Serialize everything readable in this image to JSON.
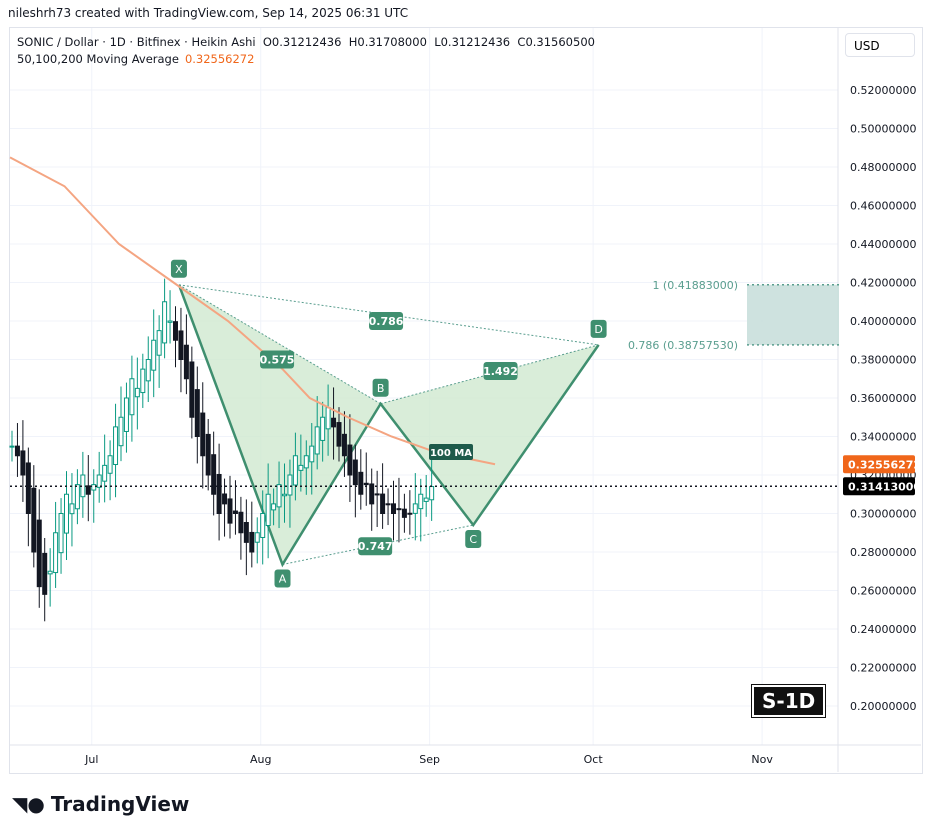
{
  "credit": "nileshrh73 created with TradingView.com, Sep 14, 2025 06:31 UTC",
  "legend": {
    "symbol_line": "SONIC / Dollar · 1D · Bitfinex · Heikin Ashi  O0.31212436  H0.31708000  L0.31212436  C0.31560500",
    "ma_label": "50,100,200 Moving Average",
    "ma_value": "0.32556272"
  },
  "currency": "USD",
  "badge": "S-1D",
  "brand": "TradingView",
  "colors": {
    "up": "#089981",
    "down": "#131722",
    "ma": "#f4a582",
    "pattern": "#3f8f6f",
    "pattern_fill": "#cfe8cf",
    "ma_tag": "#f0661a",
    "zone": "#c9dfdc"
  },
  "chart_data": {
    "type": "candlestick",
    "title": "SONIC / Dollar · 1D · Bitfinex · Heikin Ashi",
    "ylim": [
      0.19,
      0.535
    ],
    "y_ticks": [
      "0.52000000",
      "0.50000000",
      "0.48000000",
      "0.46000000",
      "0.44000000",
      "0.42000000",
      "0.40000000",
      "0.38000000",
      "0.36000000",
      "0.34000000",
      "0.32000000",
      "0.30000000",
      "0.28000000",
      "0.26000000",
      "0.24000000",
      "0.22000000",
      "0.20000000"
    ],
    "x_ticks": [
      {
        "label": "Jul",
        "day": 15
      },
      {
        "label": "Aug",
        "day": 46
      },
      {
        "label": "Sep",
        "day": 77
      },
      {
        "label": "Oct",
        "day": 107
      },
      {
        "label": "Nov",
        "day": 138
      }
    ],
    "closes": [
      0.335,
      0.33,
      0.32,
      0.3,
      0.28,
      0.262,
      0.258,
      0.27,
      0.29,
      0.3,
      0.31,
      0.305,
      0.315,
      0.32,
      0.31,
      0.315,
      0.32,
      0.325,
      0.33,
      0.345,
      0.35,
      0.36,
      0.37,
      0.365,
      0.375,
      0.38,
      0.39,
      0.395,
      0.41,
      0.4,
      0.39,
      0.38,
      0.37,
      0.35,
      0.34,
      0.33,
      0.32,
      0.31,
      0.3,
      0.305,
      0.295,
      0.3,
      0.29,
      0.285,
      0.28,
      0.29,
      0.3,
      0.31,
      0.305,
      0.315,
      0.31,
      0.32,
      0.33,
      0.325,
      0.33,
      0.335,
      0.345,
      0.35,
      0.355,
      0.345,
      0.335,
      0.33,
      0.32,
      0.315,
      0.31,
      0.315,
      0.305,
      0.31,
      0.3,
      0.305,
      0.3,
      0.302,
      0.298,
      0.3,
      0.305,
      0.31,
      0.308,
      0.314
    ],
    "ma100": [
      [
        0,
        0.485
      ],
      [
        10,
        0.47
      ],
      [
        20,
        0.44
      ],
      [
        30,
        0.42
      ],
      [
        40,
        0.4
      ],
      [
        50,
        0.375
      ],
      [
        55,
        0.36
      ],
      [
        62,
        0.35
      ],
      [
        70,
        0.34
      ],
      [
        78,
        0.332
      ],
      [
        89,
        0.3256
      ]
    ],
    "harmonic": {
      "points": [
        {
          "label": "X",
          "day": 31,
          "price": 0.4188
        },
        {
          "label": "A",
          "day": 50,
          "price": 0.2735
        },
        {
          "label": "B",
          "day": 68,
          "price": 0.357
        },
        {
          "label": "C",
          "day": 85,
          "price": 0.294
        },
        {
          "label": "D",
          "day": 108,
          "price": 0.3876
        }
      ],
      "ratios": [
        {
          "label": "0.575",
          "day": 49,
          "price": 0.38
        },
        {
          "label": "0.786",
          "day": 69,
          "price": 0.4
        },
        {
          "label": "1.492",
          "day": 90,
          "price": 0.374
        },
        {
          "label": "0.747",
          "day": 67,
          "price": 0.283
        }
      ],
      "ma_label": "100 MA"
    },
    "prz": [
      {
        "label": "1 (0.41883000)",
        "price": 0.41883
      },
      {
        "label": "0.786 (0.38757530)",
        "price": 0.3875753
      }
    ],
    "price_tags": [
      {
        "label": "0.32556272",
        "price": 0.32556272,
        "kind": "ma"
      },
      {
        "label": "0.31413000",
        "price": 0.31413,
        "kind": "last"
      }
    ]
  }
}
